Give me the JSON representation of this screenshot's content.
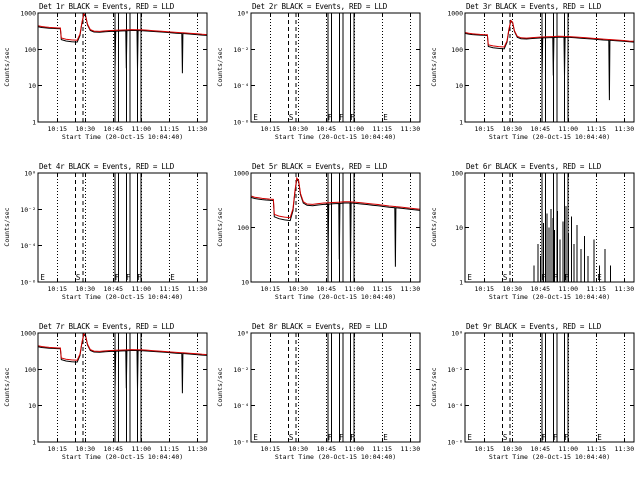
{
  "page": {
    "background": "#ffffff",
    "foreground": "#000000",
    "accent_red": "#d40000"
  },
  "chart_common": {
    "xlim": [
      0,
      90.5
    ],
    "x_ticks": [
      {
        "t": 10.33,
        "label": "10:15"
      },
      {
        "t": 25.33,
        "label": "10:30"
      },
      {
        "t": 40.33,
        "label": "10:45"
      },
      {
        "t": 55.33,
        "label": "11:00"
      },
      {
        "t": 70.33,
        "label": "11:15"
      },
      {
        "t": 85.33,
        "label": "11:30"
      }
    ],
    "dashed_lines": [
      20,
      24
    ],
    "solid_lines": [
      41.3,
      43.2,
      47.3,
      49.2,
      53.3,
      55.2
    ],
    "flags": [
      {
        "t": 2.5,
        "label": "E"
      },
      {
        "t": 21.5,
        "label": "S"
      },
      {
        "t": 42.3,
        "label": "F"
      },
      {
        "t": 48.3,
        "label": "F"
      },
      {
        "t": 54.3,
        "label": "F"
      },
      {
        "t": 72,
        "label": "E"
      }
    ],
    "series_t": [
      0,
      2,
      4,
      6,
      8,
      10,
      12,
      12.5,
      15,
      18,
      21,
      22.5,
      23.5,
      24.5,
      25.5,
      26.5,
      28,
      30,
      33,
      36,
      39,
      41,
      41.3,
      41.6,
      44,
      47,
      47.3,
      47.6,
      50,
      53,
      53.3,
      53.6,
      56,
      59,
      62,
      65,
      68,
      71,
      74,
      77,
      77.3,
      77.6,
      81,
      85,
      88,
      90.5
    ]
  },
  "chart_data": [
    {
      "type": "line",
      "title": "Det 1r BLACK = Events, RED = LLD",
      "ylabel": "Counts/sec",
      "xlabel": "Start Time (20-Oct-15 10:04:40)",
      "ylim": [
        1,
        1000
      ],
      "y_ticks": [
        {
          "v": 1000,
          "label": "1000"
        },
        {
          "v": 100,
          "label": "100"
        },
        {
          "v": 10,
          "label": "10"
        },
        {
          "v": 1,
          "label": "1"
        }
      ],
      "show_flags": false,
      "series": [
        {
          "name": "Events",
          "color": "#000000",
          "v": [
            420,
            400,
            390,
            382,
            376,
            372,
            368,
            185,
            170,
            162,
            158,
            240,
            520,
            900,
            820,
            470,
            330,
            300,
            295,
            305,
            312,
            315,
            35,
            315,
            320,
            325,
            30,
            325,
            332,
            330,
            28,
            330,
            326,
            318,
            310,
            302,
            294,
            286,
            278,
            272,
            22,
            272,
            264,
            254,
            247,
            242
          ]
        },
        {
          "name": "LLD",
          "color": "#d40000",
          "v": [
            445,
            424,
            412,
            402,
            396,
            390,
            386,
            205,
            190,
            182,
            178,
            262,
            545,
            950,
            860,
            495,
            350,
            318,
            312,
            322,
            330,
            333,
            333,
            334,
            338,
            342,
            342,
            343,
            350,
            348,
            348,
            347,
            342,
            334,
            326,
            318,
            310,
            300,
            292,
            286,
            286,
            285,
            277,
            267,
            259,
            254
          ]
        }
      ]
    },
    {
      "type": "line",
      "title": "Det 2r BLACK = Events, RED = LLD",
      "ylabel": "Counts/sec",
      "xlabel": "Start Time (20-Oct-15 10:04:40)",
      "ylim": [
        1e-06,
        1
      ],
      "y_ticks": [
        {
          "v": 1,
          "label": "10⁰"
        },
        {
          "v": 0.01,
          "label": "10⁻²"
        },
        {
          "v": 0.0001,
          "label": "10⁻⁴"
        },
        {
          "v": 1e-06,
          "label": "10⁻⁶"
        }
      ],
      "show_flags": true,
      "series": []
    },
    {
      "type": "line",
      "title": "Det 3r BLACK = Events, RED = LLD",
      "ylabel": "Counts/sec",
      "xlabel": "Start Time (20-Oct-15 10:04:40)",
      "ylim": [
        1,
        1000
      ],
      "y_ticks": [
        {
          "v": 1000,
          "label": "1000"
        },
        {
          "v": 100,
          "label": "100"
        },
        {
          "v": 10,
          "label": "10"
        },
        {
          "v": 1,
          "label": "1"
        }
      ],
      "show_flags": false,
      "series": [
        {
          "name": "Events",
          "color": "#000000",
          "v": [
            275,
            262,
            255,
            250,
            246,
            243,
            240,
            120,
            111,
            106,
            103,
            157,
            340,
            590,
            535,
            307,
            215,
            196,
            193,
            199,
            204,
            206,
            22,
            206,
            209,
            212,
            19,
            212,
            217,
            215,
            18,
            215,
            213,
            208,
            202,
            197,
            192,
            187,
            181,
            177,
            4,
            177,
            172,
            166,
            161,
            158
          ]
        },
        {
          "name": "LLD",
          "color": "#d40000",
          "v": [
            290,
            276,
            268,
            262,
            258,
            255,
            252,
            133,
            124,
            119,
            116,
            171,
            356,
            620,
            560,
            322,
            228,
            208,
            204,
            211,
            216,
            218,
            218,
            219,
            221,
            224,
            224,
            225,
            229,
            227,
            227,
            226,
            224,
            219,
            213,
            208,
            202,
            197,
            191,
            187,
            187,
            186,
            181,
            175,
            169,
            166
          ]
        }
      ]
    },
    {
      "type": "line",
      "title": "Det 4r BLACK = Events, RED = LLD",
      "ylabel": "Counts/sec",
      "xlabel": "Start Time (20-Oct-15 10:04:40)",
      "ylim": [
        1e-06,
        1
      ],
      "y_ticks": [
        {
          "v": 1,
          "label": "10⁰"
        },
        {
          "v": 0.01,
          "label": "10⁻²"
        },
        {
          "v": 0.0001,
          "label": "10⁻⁴"
        },
        {
          "v": 1e-06,
          "label": "10⁻⁶"
        }
      ],
      "show_flags": true,
      "series": []
    },
    {
      "type": "line",
      "title": "Det 5r BLACK = Events, RED = LLD",
      "ylabel": "Counts/sec",
      "xlabel": "Start Time (20-Oct-15 10:04:40)",
      "ylim": [
        10,
        1000
      ],
      "y_ticks": [
        {
          "v": 1000,
          "label": "1000"
        },
        {
          "v": 100,
          "label": "100"
        },
        {
          "v": 10,
          "label": "10"
        }
      ],
      "show_flags": false,
      "series": [
        {
          "name": "Events",
          "color": "#000000",
          "v": [
            357,
            340,
            332,
            325,
            320,
            316,
            313,
            157,
            145,
            138,
            134,
            204,
            442,
            765,
            697,
            400,
            281,
            255,
            251,
            259,
            265,
            268,
            30,
            268,
            272,
            276,
            26,
            276,
            282,
            281,
            24,
            281,
            277,
            270,
            264,
            257,
            250,
            243,
            236,
            231,
            19,
            231,
            224,
            216,
            210,
            206
          ]
        },
        {
          "name": "LLD",
          "color": "#d40000",
          "v": [
            378,
            360,
            350,
            342,
            337,
            332,
            328,
            174,
            162,
            155,
            151,
            223,
            463,
            808,
            731,
            421,
            298,
            270,
            265,
            274,
            281,
            283,
            283,
            284,
            287,
            291,
            291,
            292,
            298,
            296,
            296,
            295,
            291,
            284,
            277,
            270,
            264,
            255,
            248,
            243,
            243,
            242,
            235,
            227,
            220,
            216
          ]
        }
      ]
    },
    {
      "type": "bar",
      "title": "Det 6r BLACK = Events, RED = LLD",
      "ylabel": "Counts/sec",
      "xlabel": "Start Time (20-Oct-15 10:04:40)",
      "ylim": [
        1,
        100
      ],
      "y_ticks": [
        {
          "v": 100,
          "label": "100"
        },
        {
          "v": 10,
          "label": "10"
        },
        {
          "v": 1,
          "label": "1"
        }
      ],
      "show_flags": true,
      "series": [],
      "spikes": [
        [
          37,
          2
        ],
        [
          39,
          5
        ],
        [
          40.5,
          3
        ],
        [
          42,
          12
        ],
        [
          43,
          8
        ],
        [
          44,
          18
        ],
        [
          45,
          10
        ],
        [
          46,
          22
        ],
        [
          47,
          15
        ],
        [
          48,
          9
        ],
        [
          49.5,
          20
        ],
        [
          51,
          6
        ],
        [
          52.5,
          13
        ],
        [
          54,
          25
        ],
        [
          55.5,
          8
        ],
        [
          57,
          16
        ],
        [
          58.5,
          5
        ],
        [
          60,
          11
        ],
        [
          62,
          4
        ],
        [
          64,
          7
        ],
        [
          66,
          3
        ],
        [
          69,
          6
        ],
        [
          72,
          2
        ],
        [
          75,
          4
        ],
        [
          78,
          2
        ]
      ]
    },
    {
      "type": "line",
      "title": "Det 7r BLACK = Events, RED = LLD",
      "ylabel": "Counts/sec",
      "xlabel": "Start Time (20-Oct-15 10:04:40)",
      "ylim": [
        1,
        1000
      ],
      "y_ticks": [
        {
          "v": 1000,
          "label": "1000"
        },
        {
          "v": 100,
          "label": "100"
        },
        {
          "v": 10,
          "label": "10"
        },
        {
          "v": 1,
          "label": "1"
        }
      ],
      "show_flags": false,
      "series": [
        {
          "name": "Events",
          "color": "#000000",
          "v": [
            420,
            400,
            390,
            382,
            376,
            372,
            368,
            185,
            170,
            162,
            158,
            240,
            520,
            900,
            820,
            470,
            330,
            300,
            295,
            305,
            312,
            315,
            35,
            315,
            320,
            325,
            30,
            325,
            332,
            330,
            28,
            330,
            326,
            318,
            310,
            302,
            294,
            286,
            278,
            272,
            22,
            272,
            264,
            254,
            247,
            242
          ]
        },
        {
          "name": "LLD",
          "color": "#d40000",
          "v": [
            445,
            424,
            412,
            402,
            396,
            390,
            386,
            205,
            190,
            182,
            178,
            262,
            545,
            950,
            860,
            495,
            350,
            318,
            312,
            322,
            330,
            333,
            333,
            334,
            338,
            342,
            342,
            343,
            350,
            348,
            348,
            347,
            342,
            334,
            326,
            318,
            310,
            300,
            292,
            286,
            286,
            285,
            277,
            267,
            259,
            254
          ]
        }
      ]
    },
    {
      "type": "line",
      "title": "Det 8r BLACK = Events, RED = LLD",
      "ylabel": "Counts/sec",
      "xlabel": "Start Time (20-Oct-15 10:04:40)",
      "ylim": [
        1e-06,
        1
      ],
      "y_ticks": [
        {
          "v": 1,
          "label": "10⁰"
        },
        {
          "v": 0.01,
          "label": "10⁻²"
        },
        {
          "v": 0.0001,
          "label": "10⁻⁴"
        },
        {
          "v": 1e-06,
          "label": "10⁻⁶"
        }
      ],
      "show_flags": true,
      "series": []
    },
    {
      "type": "line",
      "title": "Det 9r BLACK = Events, RED = LLD",
      "ylabel": "Counts/sec",
      "xlabel": "Start Time (20-Oct-15 10:04:40)",
      "ylim": [
        1e-06,
        1
      ],
      "y_ticks": [
        {
          "v": 1,
          "label": "10⁰"
        },
        {
          "v": 0.01,
          "label": "10⁻²"
        },
        {
          "v": 0.0001,
          "label": "10⁻⁴"
        },
        {
          "v": 1e-06,
          "label": "10⁻⁶"
        }
      ],
      "show_flags": true,
      "series": []
    }
  ]
}
